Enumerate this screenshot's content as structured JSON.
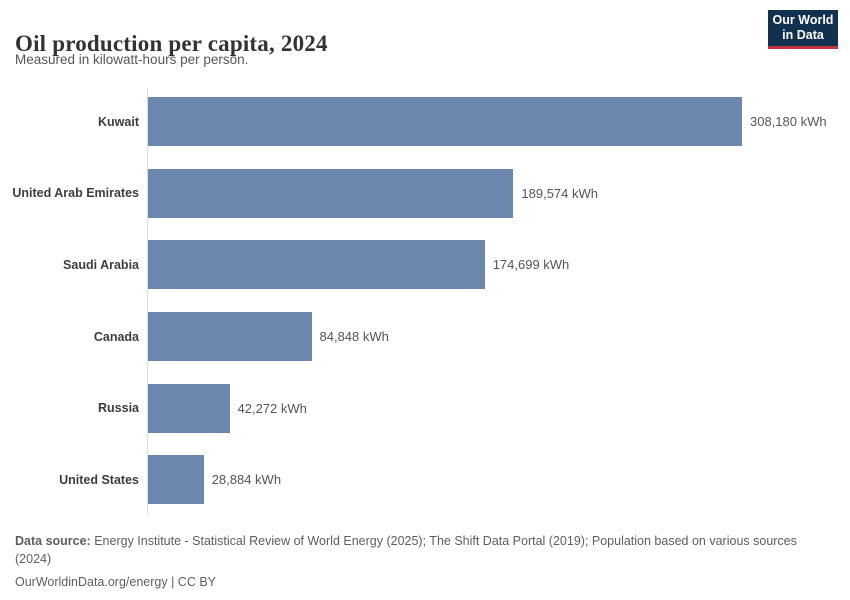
{
  "header": {
    "title": "Oil production per capita, 2024",
    "subtitle": "Measured in kilowatt-hours per person.",
    "logo": {
      "line1": "Our World",
      "line2": "in Data"
    }
  },
  "chart_data": {
    "type": "bar",
    "orientation": "horizontal",
    "title": "Oil production per capita, 2024",
    "subtitle": "Measured in kilowatt-hours per person.",
    "unit": "kWh",
    "categories": [
      "Kuwait",
      "United Arab Emirates",
      "Saudi Arabia",
      "Canada",
      "Russia",
      "United States"
    ],
    "values": [
      308180,
      189574,
      174699,
      84848,
      42272,
      28884
    ],
    "value_labels": [
      "308,180 kWh",
      "189,574 kWh",
      "174,699 kWh",
      "84,848 kWh",
      "42,272 kWh",
      "28,884 kWh"
    ],
    "xlim": [
      0,
      308180
    ],
    "grid": false,
    "legend": false
  },
  "footer": {
    "source_label": "Data source:",
    "source_text": " Energy Institute - Statistical Review of World Energy (2025); The Shift Data Portal (2019); Population based on various sources (2024)",
    "attribution": "OurWorldinData.org/energy | CC BY"
  },
  "colors": {
    "bar": "#6c87ad",
    "axis": "#dcdcdc",
    "logo_navy": "#12304f",
    "logo_red": "#c4323f",
    "title_text": "#333333",
    "muted_text": "#555555"
  }
}
